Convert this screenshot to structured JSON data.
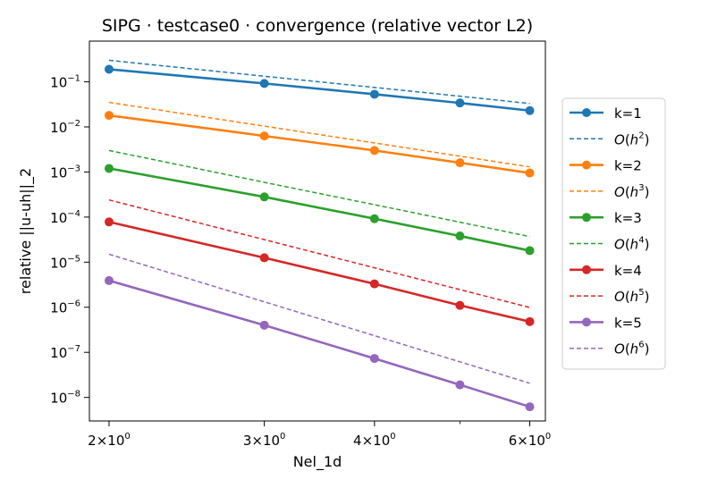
{
  "chart_data": {
    "type": "line",
    "title": "SIPG · testcase0 · convergence (relative vector L2)",
    "xlabel": "Nel_1d",
    "ylabel": "relative ||u-uh||_2",
    "xscale": "log",
    "yscale": "log",
    "xlim": [
      1.9,
      6.25
    ],
    "ylim": [
      3e-09,
      0.8
    ],
    "grid": false,
    "legend_position": "outside-right",
    "x": [
      2,
      3,
      4,
      5,
      6
    ],
    "xticks": [
      {
        "value": 2,
        "base": "2",
        "mult": "×",
        "pow": "10",
        "exp": "0"
      },
      {
        "value": 3,
        "base": "3",
        "mult": "×",
        "pow": "10",
        "exp": "0"
      },
      {
        "value": 4,
        "base": "4",
        "mult": "×",
        "pow": "10",
        "exp": "0"
      },
      {
        "value": 6,
        "base": "6",
        "mult": "×",
        "pow": "10",
        "exp": "0"
      }
    ],
    "yticks": [
      {
        "value": 0.1,
        "base": "10",
        "exp": "−1"
      },
      {
        "value": 0.01,
        "base": "10",
        "exp": "−2"
      },
      {
        "value": 0.001,
        "base": "10",
        "exp": "−3"
      },
      {
        "value": 0.0001,
        "base": "10",
        "exp": "−4"
      },
      {
        "value": 1e-05,
        "base": "10",
        "exp": "−5"
      },
      {
        "value": 1e-06,
        "base": "10",
        "exp": "−6"
      },
      {
        "value": 1e-07,
        "base": "10",
        "exp": "−7"
      },
      {
        "value": 1e-08,
        "base": "10",
        "exp": "−8"
      }
    ],
    "series": [
      {
        "name": "k=1",
        "style": "solid-marker",
        "color": "#1f77b4",
        "values": [
          0.19,
          0.092,
          0.053,
          0.034,
          0.023
        ]
      },
      {
        "name": "O(h",
        "sup": "2",
        "close": ")",
        "style": "dashed",
        "color": "#1f77b4",
        "values": [
          0.3,
          0.133,
          0.075,
          0.048,
          0.033
        ]
      },
      {
        "name": "k=2",
        "style": "solid-marker",
        "color": "#ff7f0e",
        "values": [
          0.018,
          0.0063,
          0.003,
          0.0016,
          0.00095
        ]
      },
      {
        "name": "O(h",
        "sup": "3",
        "close": ")",
        "style": "dashed",
        "color": "#ff7f0e",
        "values": [
          0.035,
          0.0104,
          0.0044,
          0.00224,
          0.0013
        ]
      },
      {
        "name": "k=3",
        "style": "solid-marker",
        "color": "#2ca02c",
        "values": [
          0.0012,
          0.00028,
          9.2e-05,
          3.8e-05,
          1.8e-05
        ]
      },
      {
        "name": "O(h",
        "sup": "4",
        "close": ")",
        "style": "dashed",
        "color": "#2ca02c",
        "values": [
          0.003,
          0.00059,
          0.000188,
          7.7e-05,
          3.7e-05
        ]
      },
      {
        "name": "k=4",
        "style": "solid-marker",
        "color": "#d62728",
        "values": [
          7.8e-05,
          1.25e-05,
          3.3e-06,
          1.1e-06,
          4.8e-07
        ]
      },
      {
        "name": "O(h",
        "sup": "5",
        "close": ")",
        "style": "dashed",
        "color": "#d62728",
        "values": [
          0.00024,
          3.16e-05,
          7.5e-06,
          2.46e-06,
          9.88e-07
        ]
      },
      {
        "name": "k=5",
        "style": "solid-marker",
        "color": "#9467bd",
        "values": [
          3.9e-06,
          4e-07,
          7.3e-08,
          1.9e-08,
          6.2e-09
        ]
      },
      {
        "name": "O(h",
        "sup": "6",
        "close": ")",
        "style": "dashed",
        "color": "#9467bd",
        "values": [
          1.5e-05,
          1.32e-06,
          2.34e-07,
          6.15e-08,
          2.06e-08
        ]
      }
    ]
  }
}
